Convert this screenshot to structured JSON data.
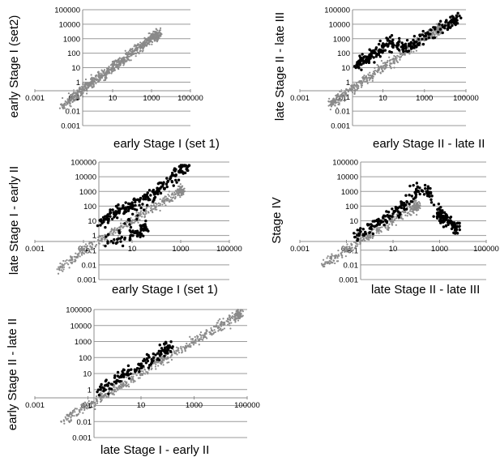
{
  "chart_data": [
    {
      "type": "scatter",
      "title": "",
      "xlabel": "early Stage I (set 1)",
      "ylabel": "early Stage I (set2)",
      "xscale": "log",
      "yscale": "log",
      "xlim": [
        0.001,
        100000
      ],
      "ylim": [
        0.001,
        100000
      ],
      "x_ticks": [
        "0.001",
        "0.1",
        "10",
        "1000",
        "100000"
      ],
      "y_ticks": [
        "100000",
        "10000",
        "1000",
        "100",
        "10",
        "1",
        "0.1",
        "0.01",
        "0.001"
      ],
      "grid": true,
      "series": [
        {
          "color": "#8a8a8a",
          "values": [
            [
              0.03,
              0.025
            ],
            [
              0.1,
              0.09
            ],
            [
              0.3,
              0.35
            ],
            [
              1,
              1.1
            ],
            [
              3,
              2.7
            ],
            [
              10,
              11
            ],
            [
              30,
              28
            ],
            [
              100,
              110
            ],
            [
              300,
              280
            ],
            [
              1000,
              1100
            ],
            [
              2000,
              1900
            ]
          ]
        },
        {
          "color": "#000000",
          "values": []
        }
      ]
    },
    {
      "type": "scatter",
      "title": "",
      "xlabel": "early Stage II - late II",
      "ylabel": "late Stage II - late III",
      "xscale": "log",
      "yscale": "log",
      "xlim": [
        0.001,
        100000
      ],
      "ylim": [
        0.001,
        100000
      ],
      "x_ticks": [
        "0.001",
        "0.1",
        "10",
        "1000",
        "100000"
      ],
      "y_ticks": [
        "100000",
        "10000",
        "1000",
        "100",
        "10",
        "1",
        "0.1",
        "0.01",
        "0.001"
      ],
      "grid": true,
      "series": [
        {
          "color": "#8a8a8a",
          "values": [
            [
              0.03,
              0.03
            ],
            [
              0.1,
              0.1
            ],
            [
              1,
              1
            ],
            [
              10,
              10
            ],
            [
              100,
              100
            ],
            [
              1000,
              1000
            ],
            [
              5000,
              5000
            ]
          ]
        },
        {
          "color": "#000000",
          "values": [
            [
              0.5,
              10
            ],
            [
              1,
              30
            ],
            [
              2,
              50
            ],
            [
              5,
              80
            ],
            [
              10,
              300
            ],
            [
              30,
              500
            ],
            [
              100,
              200
            ],
            [
              300,
              400
            ],
            [
              1000,
              1500
            ],
            [
              10000,
              8000
            ],
            [
              30000,
              20000
            ]
          ]
        }
      ]
    },
    {
      "type": "scatter",
      "title": "",
      "xlabel": "early Stage I  (set 1)",
      "ylabel": "late Stage I - early II",
      "xscale": "log",
      "yscale": "log",
      "xlim": [
        0.001,
        100000
      ],
      "ylim": [
        0.001,
        100000
      ],
      "x_ticks": [
        "0.001",
        "0.1",
        "10",
        "1000",
        "100000"
      ],
      "y_ticks": [
        "100000",
        "10000",
        "1000",
        "100",
        "10",
        "1",
        "0.1",
        "0.01",
        "0.001"
      ],
      "grid": true,
      "series": [
        {
          "color": "#8a8a8a",
          "values": [
            [
              0.01,
              0.005
            ],
            [
              0.1,
              0.1
            ],
            [
              1,
              1
            ],
            [
              10,
              10
            ],
            [
              100,
              100
            ],
            [
              1000,
              1000
            ]
          ]
        },
        {
          "color": "#000000",
          "values": [
            [
              0.5,
              5
            ],
            [
              1,
              20
            ],
            [
              3,
              50
            ],
            [
              10,
              100
            ],
            [
              30,
              300
            ],
            [
              100,
              1000
            ],
            [
              300,
              5000
            ],
            [
              1000,
              30000
            ],
            [
              2000,
              50000
            ],
            [
              1,
              0.3
            ],
            [
              10,
              1
            ],
            [
              30,
              3
            ]
          ]
        }
      ]
    },
    {
      "type": "scatter",
      "title": "",
      "xlabel": "late Stage II - late III",
      "ylabel": "Stage IV",
      "xscale": "log",
      "yscale": "log",
      "xlim": [
        0.001,
        100000
      ],
      "ylim": [
        0.001,
        100000
      ],
      "x_ticks": [
        "0.001",
        "0.1",
        "10",
        "1000",
        "100000"
      ],
      "y_ticks": [
        "100000",
        "10000",
        "1000",
        "100",
        "10",
        "1",
        "0.1",
        "0.01",
        "0.001"
      ],
      "grid": true,
      "series": [
        {
          "color": "#8a8a8a",
          "values": [
            [
              0.01,
              0.01
            ],
            [
              0.1,
              0.1
            ],
            [
              1,
              1
            ],
            [
              10,
              10
            ],
            [
              100,
              100
            ]
          ]
        },
        {
          "color": "#000000",
          "values": [
            [
              0.3,
              1
            ],
            [
              1,
              3
            ],
            [
              3,
              10
            ],
            [
              10,
              30
            ],
            [
              30,
              100
            ],
            [
              100,
              1000
            ],
            [
              300,
              1000
            ],
            [
              1000,
              10
            ],
            [
              3000,
              10
            ],
            [
              5000,
              3
            ],
            [
              1000,
              30
            ]
          ]
        }
      ]
    },
    {
      "type": "scatter",
      "title": "",
      "xlabel": "late Stage I - early II",
      "ylabel": "early Stage II - late II",
      "xscale": "log",
      "yscale": "log",
      "xlim": [
        0.001,
        100000
      ],
      "ylim": [
        0.001,
        100000
      ],
      "x_ticks": [
        "0.001",
        "0.1",
        "10",
        "1000",
        "100000"
      ],
      "y_ticks": [
        "100000",
        "10000",
        "1000",
        "100",
        "10",
        "1",
        "0.1",
        "0.01",
        "0.001"
      ],
      "grid": true,
      "series": [
        {
          "color": "#8a8a8a",
          "values": [
            [
              0.01,
              0.01
            ],
            [
              0.1,
              0.1
            ],
            [
              1,
              1
            ],
            [
              10,
              10
            ],
            [
              100,
              100
            ],
            [
              1000,
              1000
            ],
            [
              10000,
              10000
            ],
            [
              50000,
              50000
            ]
          ]
        },
        {
          "color": "#000000",
          "values": [
            [
              0.3,
              1
            ],
            [
              1,
              3
            ],
            [
              3,
              10
            ],
            [
              10,
              30
            ],
            [
              30,
              100
            ],
            [
              100,
              300
            ]
          ]
        }
      ]
    }
  ]
}
